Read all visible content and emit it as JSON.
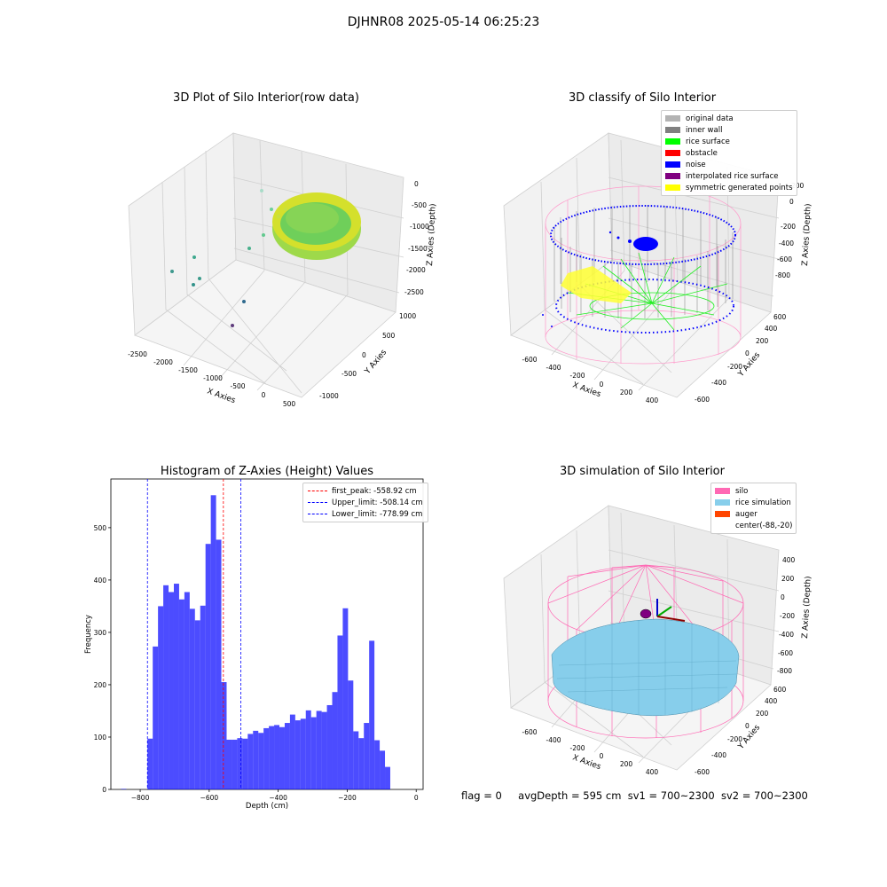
{
  "suptitle": "DJHNR08 2025-05-14 06:25:23",
  "footer": {
    "flag": "flag = 0",
    "avg_depth": "avgDepth = 595 cm",
    "sv1": "sv1 = 700~2300",
    "sv2": "sv2 = 700~2300"
  },
  "panel1": {
    "title": "3D Plot of Silo Interior(row data)",
    "xlabel": "X Axies",
    "ylabel": "Y Axies",
    "zlabel": "Z Axies (Depth)",
    "xticks": [
      "-2500",
      "-2000",
      "-1500",
      "-1000",
      "-500",
      "0",
      "500"
    ],
    "yticks": [
      "-1000",
      "-500",
      "0",
      "500",
      "1000"
    ],
    "zticks": [
      "0",
      "-500",
      "-1000",
      "-1500",
      "-2000",
      "-2500"
    ]
  },
  "panel2": {
    "title": "3D classify of Silo Interior",
    "xlabel": "X Axies",
    "ylabel": "Y Axies",
    "zlabel": "Z Axies (Depth)",
    "xticks": [
      "-600",
      "-400",
      "-200",
      "0",
      "200",
      "400"
    ],
    "yticks": [
      "-600",
      "-400",
      "-200",
      "0",
      "200",
      "400",
      "600"
    ],
    "zticks": [
      "200",
      "0",
      "-200",
      "-400",
      "-600",
      "-800"
    ],
    "legend": [
      {
        "label": "original data",
        "color": "#b3b3b3"
      },
      {
        "label": "inner wall",
        "color": "#808080"
      },
      {
        "label": "rice surface",
        "color": "#00ff00"
      },
      {
        "label": "obstacle",
        "color": "#ff0000"
      },
      {
        "label": "noise",
        "color": "#0000ff"
      },
      {
        "label": "interpolated rice surface",
        "color": "#800080"
      },
      {
        "label": "symmetric generated points",
        "color": "#ffff00"
      }
    ]
  },
  "panel4": {
    "title": "3D simulation of Silo Interior",
    "xlabel": "X Axies",
    "ylabel": "Y Axies",
    "zlabel": "Z Axies (Depth)",
    "xticks": [
      "-600",
      "-400",
      "-200",
      "0",
      "200",
      "400"
    ],
    "yticks": [
      "-600",
      "-400",
      "-200",
      "0",
      "200",
      "400",
      "600"
    ],
    "zticks": [
      "400",
      "200",
      "0",
      "-200",
      "-400",
      "-600",
      "-800"
    ],
    "legend": [
      {
        "label": "silo",
        "color": "#ff69b4"
      },
      {
        "label": "rice simulation",
        "color": "#87ceeb"
      },
      {
        "label": "auger",
        "color": "#ff4500"
      },
      {
        "label": "center(-88,-20)",
        "color": ""
      }
    ]
  },
  "chart_data": {
    "type": "bar",
    "title": "Histogram of Z-Axies (Height) Values",
    "xlabel": "Depth (cm)",
    "ylabel": "Frequency",
    "xlim": [
      -885,
      20
    ],
    "ylim": [
      0,
      593
    ],
    "xticks": [
      -800,
      -600,
      -400,
      -200,
      0
    ],
    "yticks": [
      0,
      100,
      200,
      300,
      400,
      500
    ],
    "bar_color": "#0000ff",
    "bin_start": -778.99,
    "bin_width": 15.3,
    "values": [
      97,
      273,
      350,
      390,
      377,
      393,
      363,
      377,
      345,
      323,
      351,
      469,
      562,
      477,
      205,
      95,
      95,
      98,
      97,
      106,
      112,
      108,
      117,
      121,
      123,
      119,
      127,
      143,
      132,
      135,
      151,
      138,
      150,
      148,
      161,
      186,
      294,
      346,
      208,
      111,
      98,
      127,
      284,
      94,
      74,
      43
    ],
    "outlier_bins": [
      {
        "x": -848,
        "value": 1
      }
    ],
    "lines": [
      {
        "label": "first_peak: -558.92 cm",
        "x": -558.92,
        "color": "#ff0000"
      },
      {
        "label": "Upper_limit: -508.14 cm",
        "x": -508.14,
        "color": "#0000ff"
      },
      {
        "label": "Lower_limit: -778.99 cm",
        "x": -778.99,
        "color": "#0000ff"
      }
    ]
  }
}
